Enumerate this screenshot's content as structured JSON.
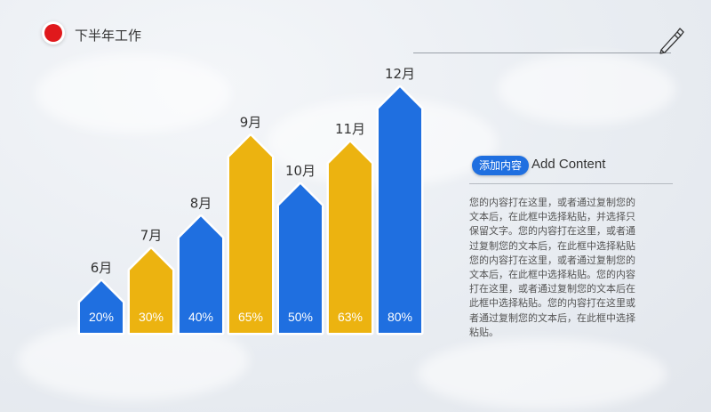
{
  "header": {
    "title": "下半年工作"
  },
  "legend": {
    "badge": "添加内容",
    "title": "Add Content",
    "body": "您的内容打在这里，或者通过复制您的文本后，在此框中选择粘贴，并选择只保留文字。您的内容打在这里，或者通过复制您的文本后，在此框中选择粘贴您的内容打在这里，或者通过复制您的文本后，在此框中选择粘贴。您的内容打在这里，或者通过复制您的文本后在此框中选择粘贴。您的内容打在这里或者通过复制您的文本后，在此框中选择粘贴。"
  },
  "colors": {
    "blue": "#1f6fe0",
    "yellow": "#ecb310",
    "accent_red": "#e0191c"
  },
  "icons": [
    "pen-icon"
  ],
  "chart_data": {
    "type": "bar",
    "categories": [
      "6月",
      "7月",
      "8月",
      "9月",
      "10月",
      "11月",
      "12月"
    ],
    "values": [
      20,
      30,
      40,
      65,
      50,
      63,
      80
    ],
    "value_labels": [
      "20%",
      "30%",
      "40%",
      "65%",
      "50%",
      "63%",
      "80%"
    ],
    "bar_colors": [
      "#1f6fe0",
      "#ecb310",
      "#1f6fe0",
      "#ecb310",
      "#1f6fe0",
      "#ecb310",
      "#1f6fe0"
    ],
    "ylim": [
      0,
      100
    ],
    "grid": false,
    "title": "",
    "xlabel": "",
    "ylabel": ""
  }
}
